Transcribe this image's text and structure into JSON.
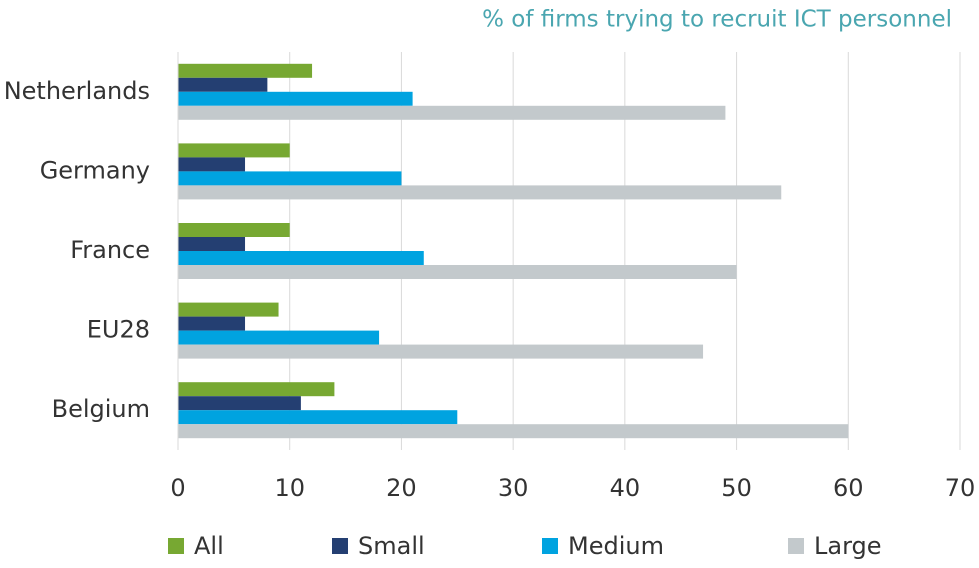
{
  "chart_data": {
    "type": "bar",
    "orientation": "horizontal",
    "title": "% of firms trying to recruit ICT personnel",
    "categories": [
      "Netherlands",
      "Germany",
      "France",
      "EU28",
      "Belgium"
    ],
    "series": [
      {
        "name": "All",
        "color": "#77a832",
        "values": [
          12,
          10,
          10,
          9,
          14
        ]
      },
      {
        "name": "Small",
        "color": "#243f72",
        "values": [
          8,
          6,
          6,
          6,
          11
        ]
      },
      {
        "name": "Medium",
        "color": "#00a3e0",
        "values": [
          21,
          20,
          22,
          18,
          25
        ]
      },
      {
        "name": "Large",
        "color": "#c3c9cc",
        "values": [
          49,
          54,
          50,
          47,
          60
        ]
      }
    ],
    "xlim": [
      0,
      70
    ],
    "xticks": [
      0,
      10,
      20,
      30,
      40,
      50,
      60,
      70
    ],
    "grid": true,
    "legend": "bottom"
  }
}
